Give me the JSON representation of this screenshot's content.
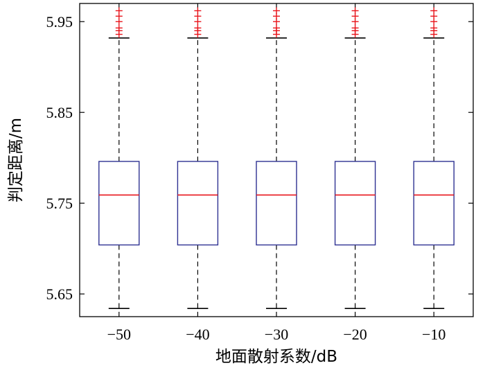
{
  "chart_data": {
    "type": "boxplot",
    "xlabel": "地面散射系数/dB",
    "ylabel": "判定距离/m",
    "ylim": [
      5.625,
      5.97
    ],
    "yticks": [
      "5.65",
      "5.75",
      "5.85",
      "5.95"
    ],
    "categories": [
      "−50",
      "−40",
      "−30",
      "−20",
      "−10"
    ],
    "boxes": [
      {
        "whisker_low": 5.634,
        "q1": 5.704,
        "median": 5.759,
        "q3": 5.796,
        "whisker_high": 5.932,
        "outliers": [
          5.936,
          5.94,
          5.943,
          5.95,
          5.956,
          5.962
        ]
      },
      {
        "whisker_low": 5.634,
        "q1": 5.704,
        "median": 5.759,
        "q3": 5.796,
        "whisker_high": 5.932,
        "outliers": [
          5.936,
          5.94,
          5.943,
          5.95,
          5.956,
          5.962
        ]
      },
      {
        "whisker_low": 5.634,
        "q1": 5.704,
        "median": 5.759,
        "q3": 5.796,
        "whisker_high": 5.932,
        "outliers": [
          5.936,
          5.94,
          5.943,
          5.95,
          5.956,
          5.962
        ]
      },
      {
        "whisker_low": 5.634,
        "q1": 5.704,
        "median": 5.759,
        "q3": 5.796,
        "whisker_high": 5.932,
        "outliers": [
          5.936,
          5.94,
          5.943,
          5.95,
          5.956,
          5.962
        ]
      },
      {
        "whisker_low": 5.634,
        "q1": 5.704,
        "median": 5.759,
        "q3": 5.796,
        "whisker_high": 5.932,
        "outliers": [
          5.936,
          5.94,
          5.943,
          5.95,
          5.956,
          5.962
        ]
      }
    ],
    "grid": false,
    "colors": {
      "box": "#2e3192",
      "median": "#e8141b",
      "whisker": "#000000",
      "outlier": "#e8141b"
    }
  }
}
